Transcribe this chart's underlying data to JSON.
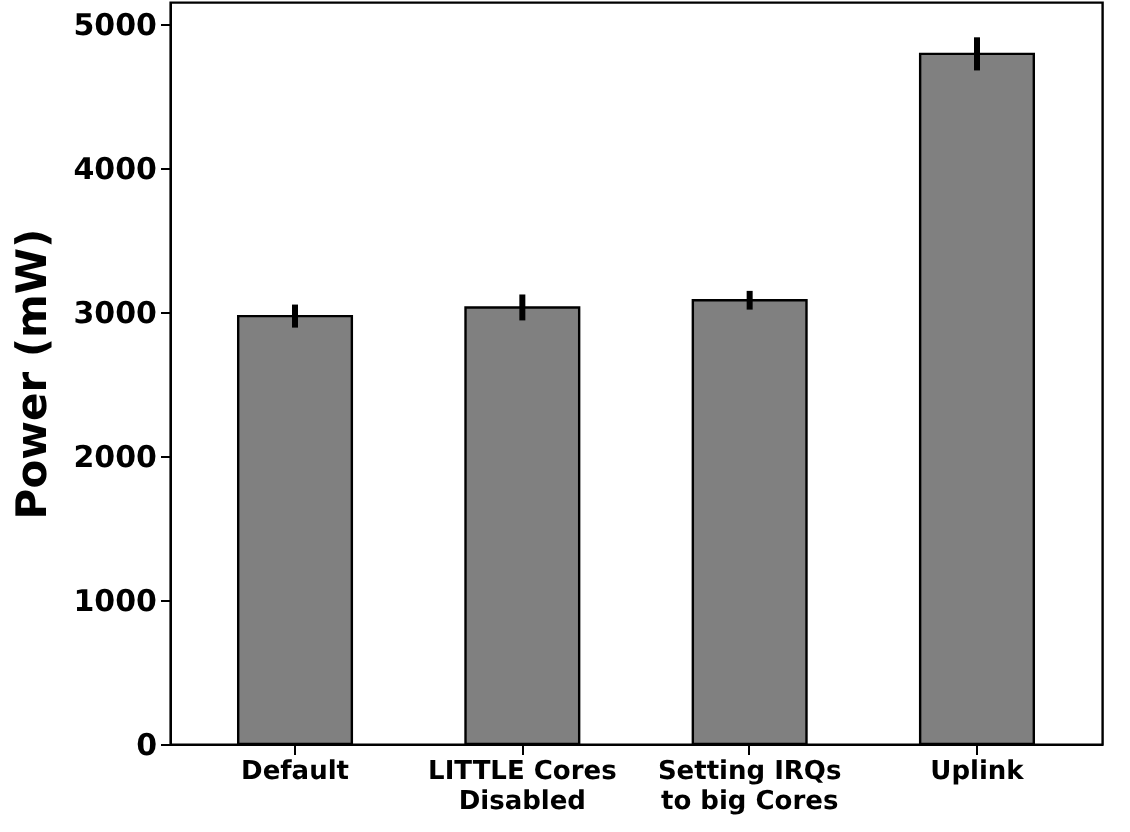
{
  "chart_data": {
    "type": "bar",
    "ylabel": "Power (mW)",
    "categories": [
      "Default",
      "LITTLE Cores\nDisabled",
      "Setting IRQs\nto big Cores",
      "Uplink"
    ],
    "values": [
      2970,
      3030,
      3080,
      4790
    ],
    "errors": [
      80,
      90,
      65,
      115
    ],
    "color": "#808080",
    "ylim": [
      0,
      5150
    ],
    "yticks": [
      0,
      1000,
      2000,
      3000,
      4000,
      5000
    ],
    "grid": false
  }
}
